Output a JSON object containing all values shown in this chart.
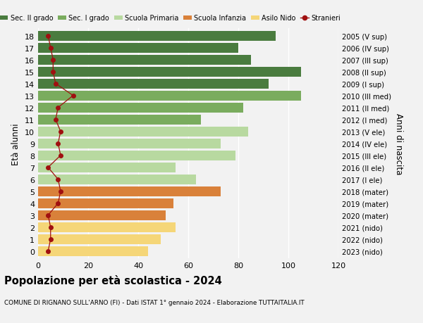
{
  "ages": [
    18,
    17,
    16,
    15,
    14,
    13,
    12,
    11,
    10,
    9,
    8,
    7,
    6,
    5,
    4,
    3,
    2,
    1,
    0
  ],
  "anni": [
    "2005 (V sup)",
    "2006 (IV sup)",
    "2007 (III sup)",
    "2008 (II sup)",
    "2009 (I sup)",
    "2010 (III med)",
    "2011 (II med)",
    "2012 (I med)",
    "2013 (V ele)",
    "2014 (IV ele)",
    "2015 (III ele)",
    "2016 (II ele)",
    "2017 (I ele)",
    "2018 (mater)",
    "2019 (mater)",
    "2020 (mater)",
    "2021 (nido)",
    "2022 (nido)",
    "2023 (nido)"
  ],
  "values": [
    95,
    80,
    85,
    105,
    92,
    105,
    82,
    65,
    84,
    73,
    79,
    55,
    63,
    73,
    54,
    51,
    55,
    49,
    44
  ],
  "stranieri": [
    4,
    5,
    6,
    6,
    7,
    14,
    8,
    7,
    9,
    8,
    9,
    4,
    8,
    9,
    8,
    4,
    5,
    5,
    4
  ],
  "bar_colors": [
    "#4a7c3f",
    "#4a7c3f",
    "#4a7c3f",
    "#4a7c3f",
    "#4a7c3f",
    "#7aac5e",
    "#7aac5e",
    "#7aac5e",
    "#b8d9a0",
    "#b8d9a0",
    "#b8d9a0",
    "#b8d9a0",
    "#b8d9a0",
    "#d9813a",
    "#d9813a",
    "#d9813a",
    "#f5d678",
    "#f5d678",
    "#f5d678"
  ],
  "legend_labels": [
    "Sec. II grado",
    "Sec. I grado",
    "Scuola Primaria",
    "Scuola Infanzia",
    "Asilo Nido",
    "Stranieri"
  ],
  "legend_colors": [
    "#4a7c3f",
    "#7aac5e",
    "#b8d9a0",
    "#d9813a",
    "#f5d678",
    "#a01010"
  ],
  "title": "Popolazione per età scolastica - 2024",
  "subtitle": "COMUNE DI RIGNANO SULL'ARNO (FI) - Dati ISTAT 1° gennaio 2024 - Elaborazione TUTTAITALIA.IT",
  "ylabel_left": "Età alunni",
  "ylabel_right": "Anni di nascita",
  "xlim": [
    0,
    120
  ],
  "xticks": [
    0,
    20,
    40,
    60,
    80,
    100,
    120
  ],
  "bg_color": "#f2f2f2",
  "grid_color": "#ffffff",
  "stranieri_color": "#a01010"
}
